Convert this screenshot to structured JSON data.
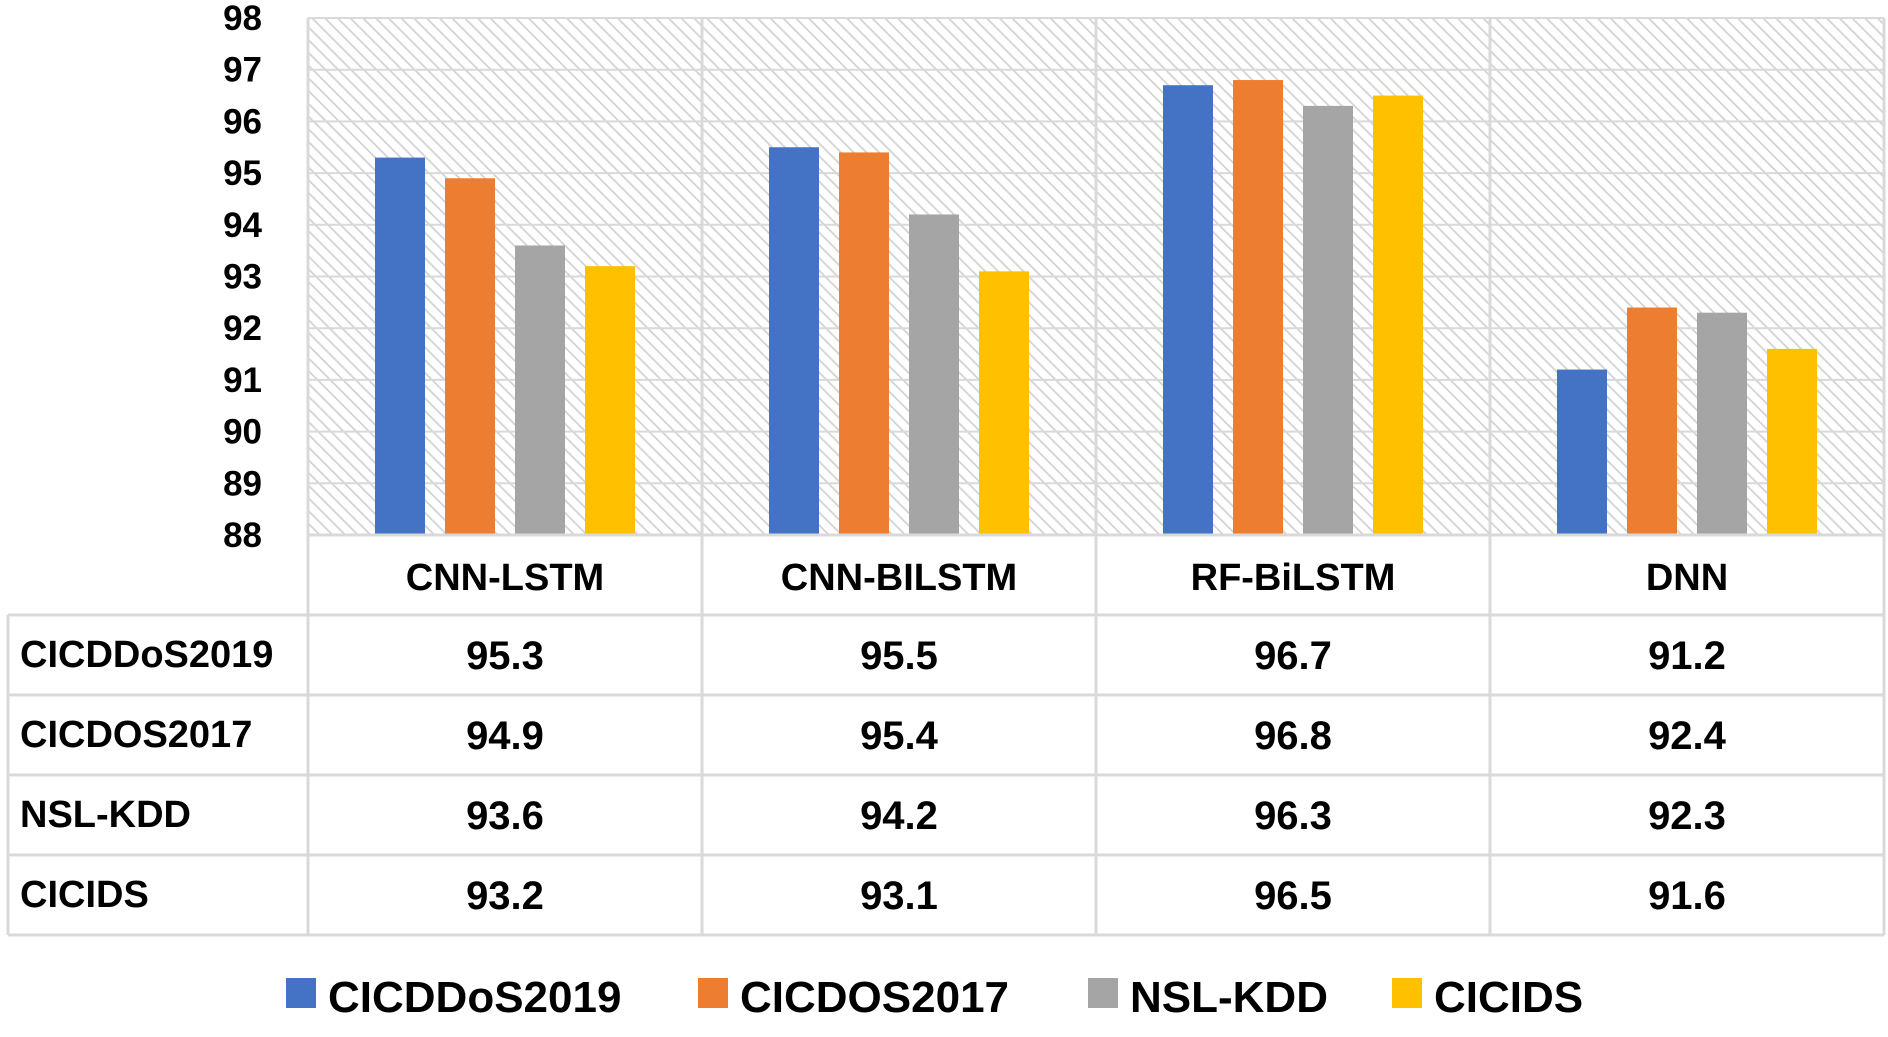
{
  "chart_data": {
    "type": "bar",
    "categories": [
      "CNN-LSTM",
      "CNN-BILSTM",
      "RF-BiLSTM",
      "DNN"
    ],
    "series": [
      {
        "name": "CICDDoS2019",
        "values": [
          95.3,
          95.5,
          96.7,
          91.2
        ],
        "color": "#4472C4"
      },
      {
        "name": "CICDOS2017",
        "values": [
          94.9,
          95.4,
          96.8,
          92.4
        ],
        "color": "#ED7D31"
      },
      {
        "name": "NSL-KDD",
        "values": [
          93.6,
          94.2,
          96.3,
          92.3
        ],
        "color": "#A5A5A5"
      },
      {
        "name": "CICIDS",
        "values": [
          93.2,
          93.1,
          96.5,
          91.6
        ],
        "color": "#FFC000"
      }
    ],
    "ylim": [
      88,
      98
    ],
    "yticks": [
      "88",
      "89",
      "90",
      "91",
      "92",
      "93",
      "94",
      "95",
      "96",
      "97",
      "98"
    ],
    "title": "",
    "xlabel": "",
    "ylabel": "",
    "grid": true,
    "data_table": true,
    "legend_position": "bottom",
    "plot_background": "diagonal-hatch",
    "table_values": [
      [
        "95.3",
        "95.5",
        "96.7",
        "91.2"
      ],
      [
        "94.9",
        "95.4",
        "96.8",
        "92.4"
      ],
      [
        "93.6",
        "94.2",
        "96.3",
        "92.3"
      ],
      [
        "93.2",
        "93.1",
        "96.5",
        "91.6"
      ]
    ]
  }
}
